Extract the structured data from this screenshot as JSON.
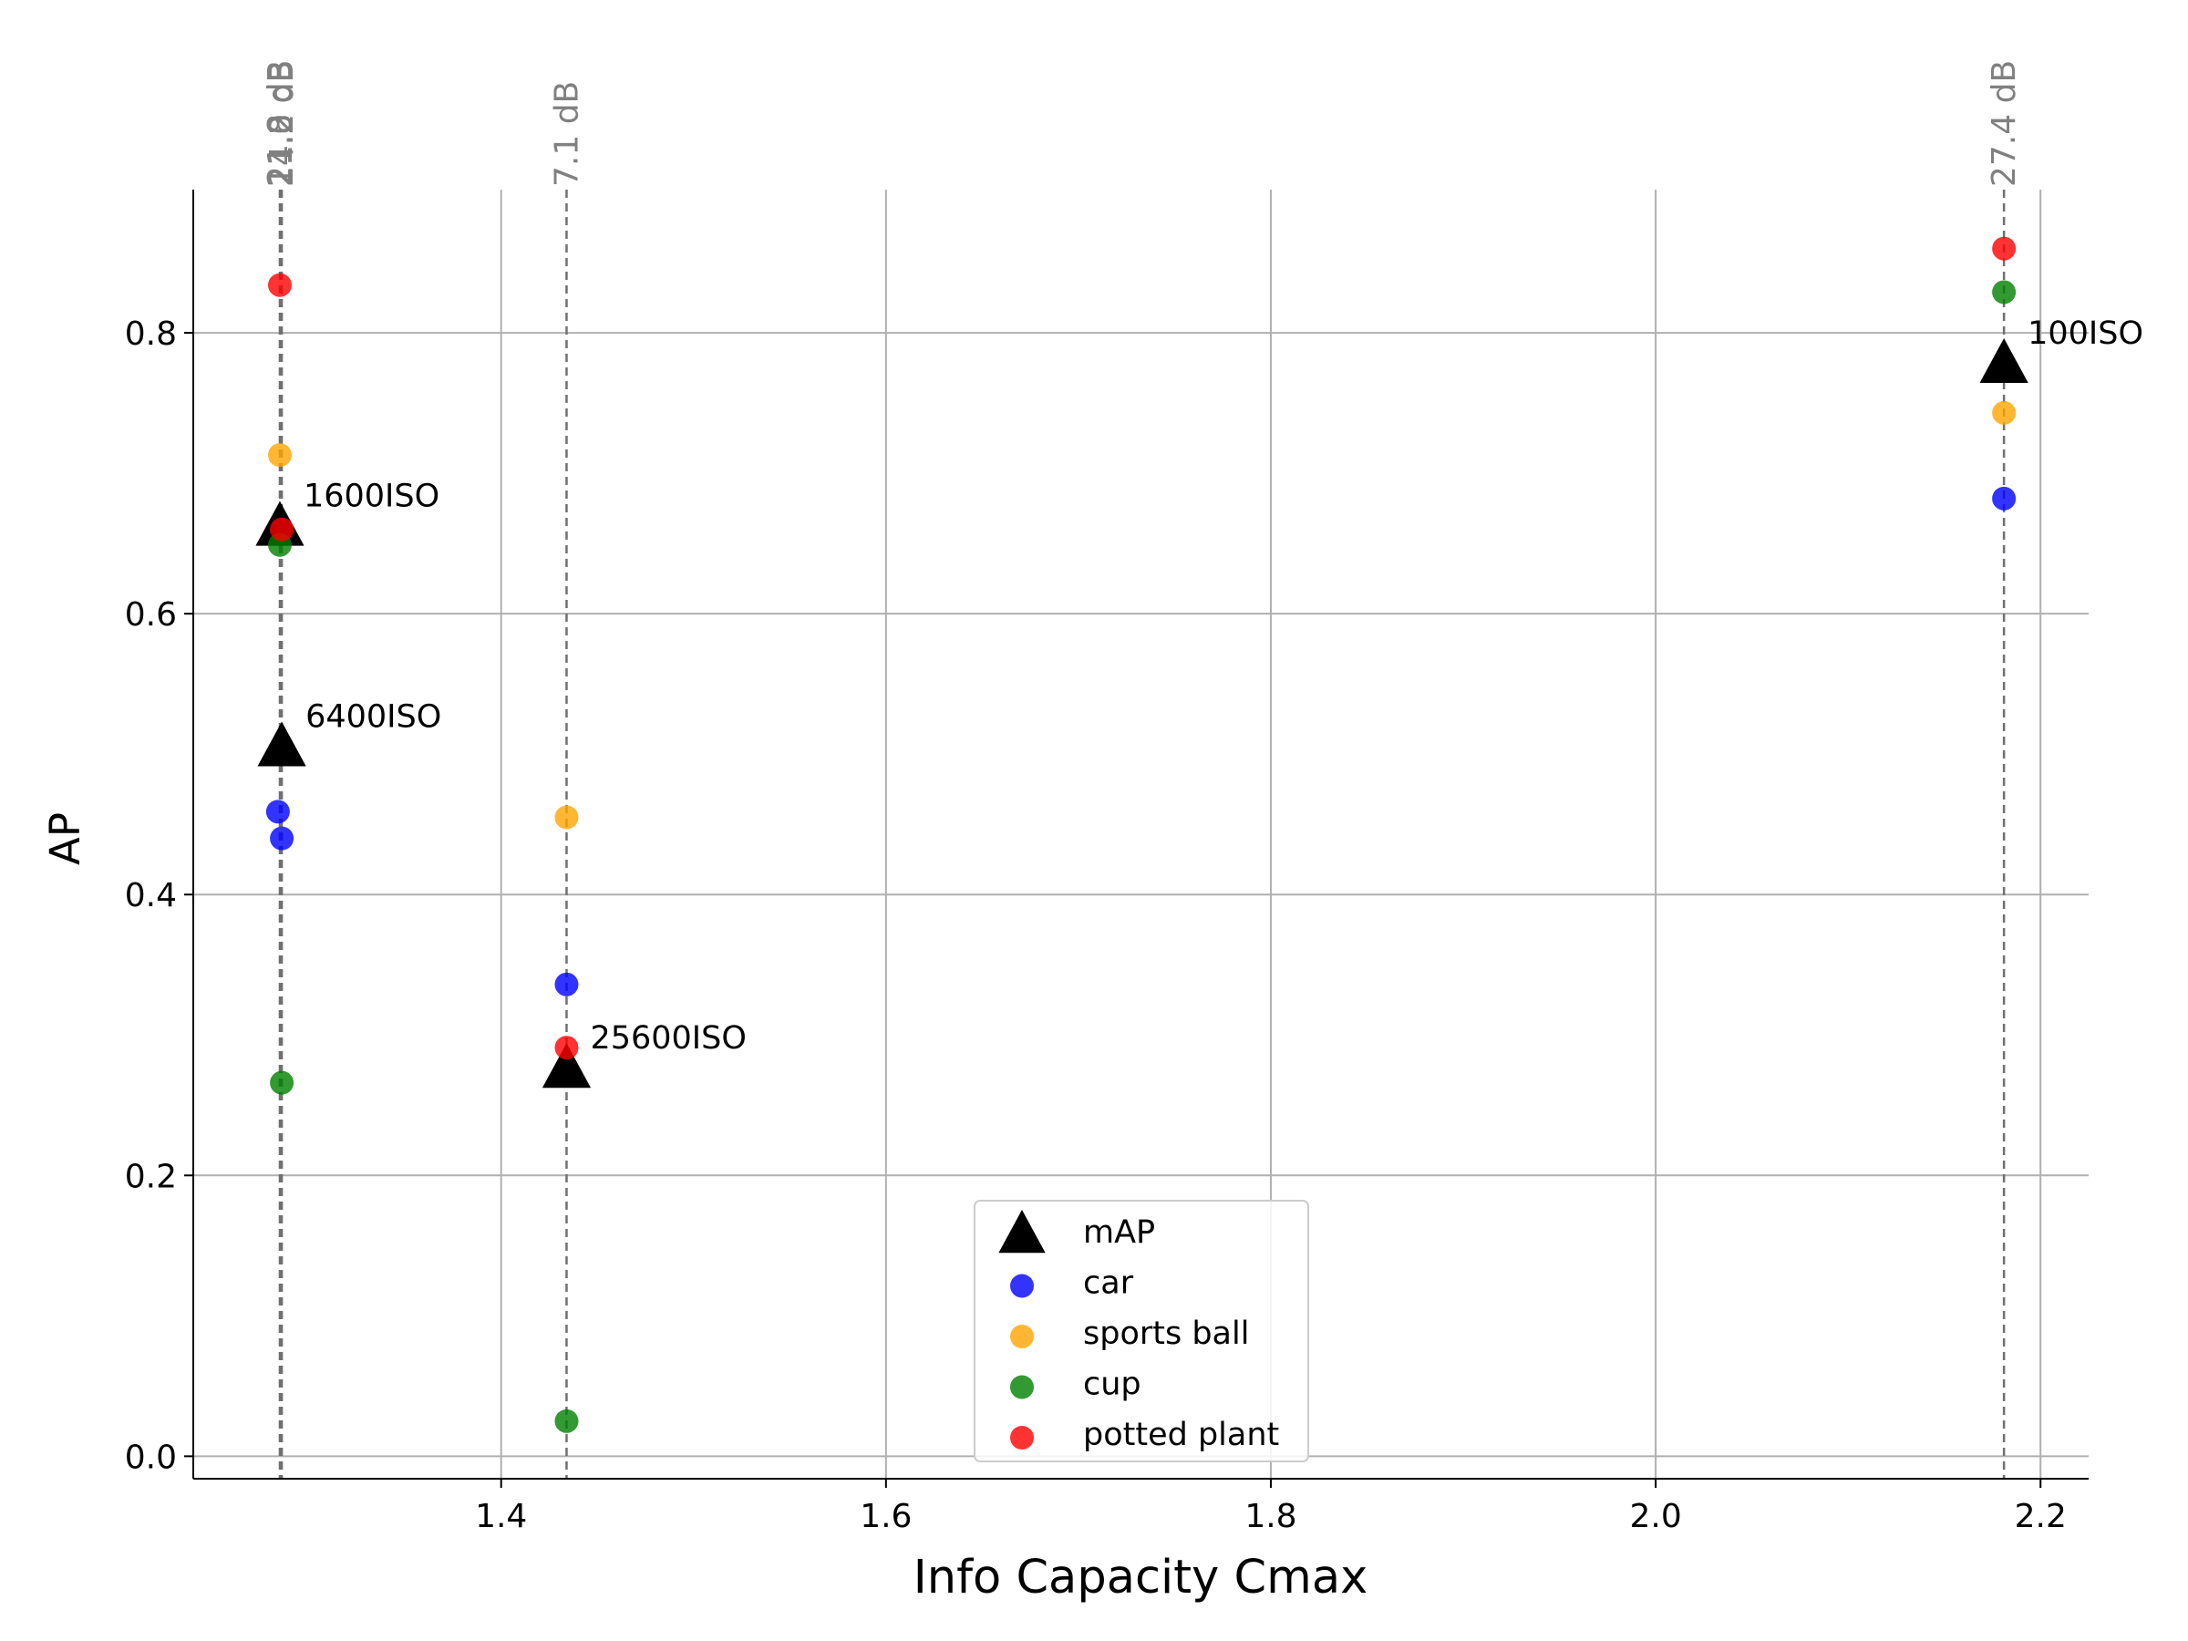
{
  "chart_data": {
    "type": "scatter",
    "xlabel": "Info Capacity Cmax",
    "ylabel": "AP",
    "xlim": [
      1.24,
      2.225
    ],
    "ylim": [
      -0.016,
      0.902
    ],
    "xticks": [
      1.4,
      1.6,
      1.8,
      2.0,
      2.2
    ],
    "xtick_labels": [
      "1.4",
      "1.6",
      "1.8",
      "2.0",
      "2.2"
    ],
    "yticks": [
      0.0,
      0.2,
      0.4,
      0.6,
      0.8
    ],
    "ytick_labels": [
      "0.0",
      "0.2",
      "0.4",
      "0.6",
      "0.8"
    ],
    "grid": true,
    "legend_position": "bottom-center",
    "series": [
      {
        "name": "mAP",
        "marker": "triangle",
        "color": "#000000",
        "points": [
          {
            "x": 1.285,
            "y": 0.662
          },
          {
            "x": 1.286,
            "y": 0.505
          },
          {
            "x": 1.434,
            "y": 0.276
          },
          {
            "x": 2.181,
            "y": 0.778
          }
        ]
      },
      {
        "name": "car",
        "marker": "circle",
        "color": "#0000ff",
        "points": [
          {
            "x": 1.284,
            "y": 0.459
          },
          {
            "x": 1.286,
            "y": 0.44
          },
          {
            "x": 1.434,
            "y": 0.336
          },
          {
            "x": 2.181,
            "y": 0.682
          }
        ]
      },
      {
        "name": "sports ball",
        "marker": "circle",
        "color": "#ffa500",
        "points": [
          {
            "x": 1.285,
            "y": 0.713
          },
          {
            "x": 1.434,
            "y": 0.455
          },
          {
            "x": 2.181,
            "y": 0.743
          }
        ]
      },
      {
        "name": "cup",
        "marker": "circle",
        "color": "#008000",
        "points": [
          {
            "x": 1.285,
            "y": 0.649
          },
          {
            "x": 1.286,
            "y": 0.266
          },
          {
            "x": 1.434,
            "y": 0.025
          },
          {
            "x": 2.181,
            "y": 0.829
          }
        ]
      },
      {
        "name": "potted plant",
        "marker": "circle",
        "color": "#ff0000",
        "points": [
          {
            "x": 1.285,
            "y": 0.834
          },
          {
            "x": 1.286,
            "y": 0.66
          },
          {
            "x": 1.434,
            "y": 0.291
          },
          {
            "x": 2.181,
            "y": 0.86
          }
        ]
      }
    ],
    "point_annotations": [
      {
        "text": "1600ISO",
        "x": 1.285,
        "y": 0.662
      },
      {
        "text": "6400ISO",
        "x": 1.286,
        "y": 0.505
      },
      {
        "text": "25600ISO",
        "x": 1.434,
        "y": 0.276
      },
      {
        "text": "100ISO",
        "x": 2.181,
        "y": 0.778
      }
    ],
    "vertical_lines": [
      {
        "x": 1.285,
        "label": "21.8 dB"
      },
      {
        "x": 1.2855,
        "label": "11.0 dB"
      },
      {
        "x": 1.286,
        "label": "24.2 dB"
      },
      {
        "x": 1.434,
        "label": "7.1 dB"
      },
      {
        "x": 2.181,
        "label": "27.4 dB"
      }
    ]
  }
}
